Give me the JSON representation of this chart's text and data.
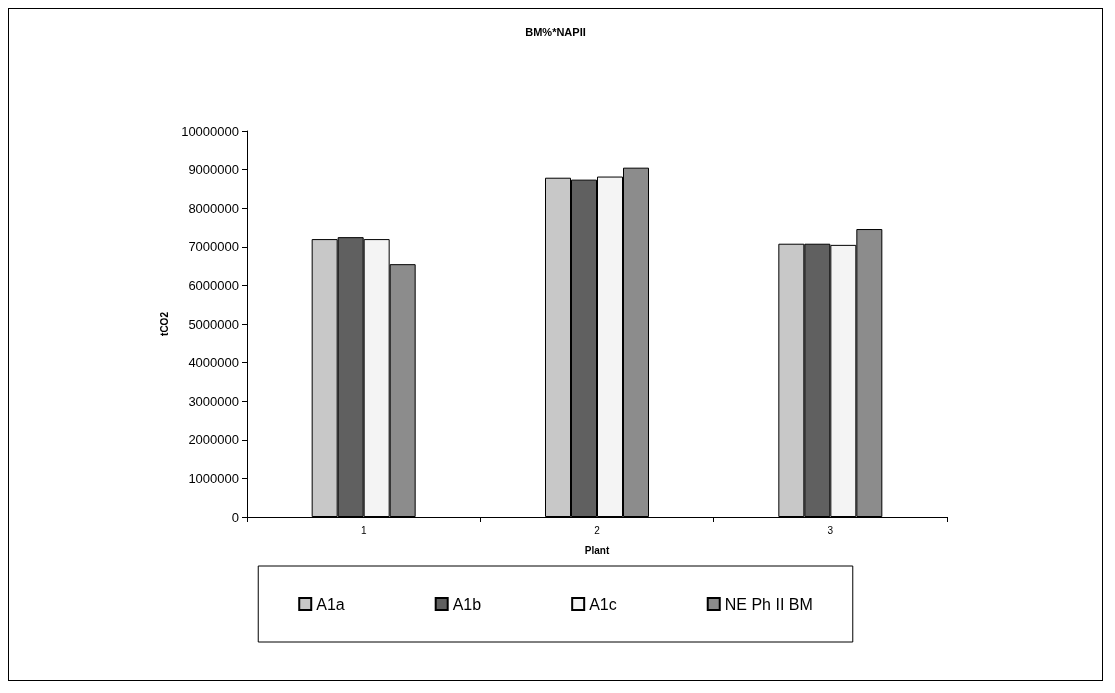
{
  "chart_data": {
    "type": "bar",
    "title": "BM%*NAPII",
    "xlabel": "Plant",
    "ylabel": "tCO2",
    "categories": [
      "1",
      "2",
      "3"
    ],
    "series": [
      {
        "name": "A1a",
        "color": "#c8c8c8",
        "values": [
          7200000,
          8790000,
          7080000
        ]
      },
      {
        "name": "A1b",
        "color": "#606060",
        "values": [
          7250000,
          8740000,
          7080000
        ]
      },
      {
        "name": "A1c",
        "color": "#f4f4f4",
        "values": [
          7200000,
          8820000,
          7050000
        ]
      },
      {
        "name": "NE Ph II BM",
        "color": "#8c8c8c",
        "values": [
          6550000,
          9050000,
          7460000
        ]
      }
    ],
    "ylim": [
      0,
      10000000
    ],
    "yticks": [
      0,
      1000000,
      2000000,
      3000000,
      4000000,
      5000000,
      6000000,
      7000000,
      8000000,
      9000000,
      10000000
    ],
    "grid": false,
    "legend": "bottom"
  }
}
